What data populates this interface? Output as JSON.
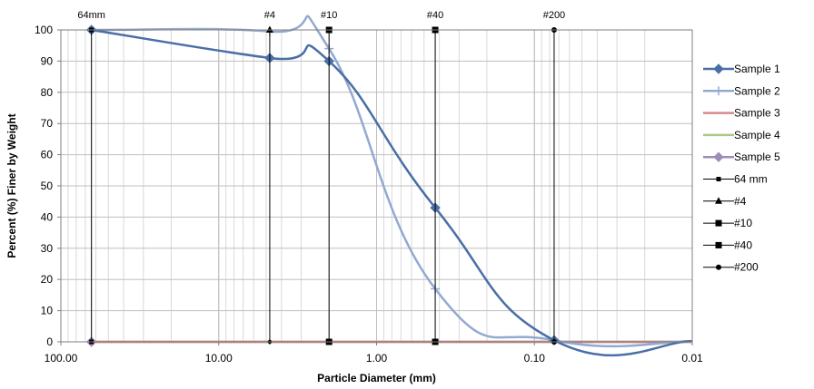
{
  "chart_data": {
    "type": "line",
    "x_scale": "log",
    "x_reversed": true,
    "xlabel": "Particle Diameter (mm)",
    "ylabel": "Percent (%) Finer by Weight",
    "xlim": [
      100,
      0.01
    ],
    "ylim": [
      0,
      100
    ],
    "x_ticks": [
      100,
      10,
      1,
      0.1,
      0.01
    ],
    "x_tick_labels": [
      "100.00",
      "10.00",
      "1.00",
      "0.10",
      "0.01"
    ],
    "y_ticks": [
      0,
      10,
      20,
      30,
      40,
      50,
      60,
      70,
      80,
      90,
      100
    ],
    "grid": true,
    "legend_position": "right",
    "series": [
      {
        "name": "Sample 1",
        "color": "#4A6FA5",
        "marker": "diamond",
        "smooth": true,
        "x": [
          64,
          4.75,
          2.0,
          0.425,
          0.075,
          0.01
        ],
        "y": [
          100,
          91,
          90,
          43,
          0.5,
          0.2
        ]
      },
      {
        "name": "Sample 2",
        "color": "#93A9D1",
        "marker": "plus",
        "smooth": true,
        "x": [
          64,
          4.75,
          2.0,
          0.425,
          0.075,
          0.01
        ],
        "y": [
          100,
          99.5,
          94,
          17,
          0.5,
          0.2
        ]
      },
      {
        "name": "Sample 3",
        "color": "#D48A8A",
        "marker": "none",
        "smooth": false,
        "x": [
          64,
          0.01
        ],
        "y": [
          0,
          0
        ]
      },
      {
        "name": "Sample 4",
        "color": "#A8C98A",
        "marker": "none",
        "smooth": false,
        "x": [
          64,
          0.01
        ],
        "y": [
          0,
          0
        ]
      },
      {
        "name": "Sample 5",
        "color": "#A08CBB",
        "marker": "diamond",
        "smooth": false,
        "x": [
          64,
          0.01
        ],
        "y": [
          0,
          0
        ]
      }
    ],
    "sieve_lines": [
      {
        "name": "64 mm",
        "label": "64mm",
        "x": 64,
        "marker": "square-small"
      },
      {
        "name": "#4",
        "label": "#4",
        "x": 4.75,
        "marker": "triangle"
      },
      {
        "name": "#10",
        "label": "#10",
        "x": 2.0,
        "marker": "square"
      },
      {
        "name": "#40",
        "label": "#40",
        "x": 0.425,
        "marker": "square"
      },
      {
        "name": "#200",
        "label": "#200",
        "x": 0.075,
        "marker": "circle"
      }
    ]
  }
}
